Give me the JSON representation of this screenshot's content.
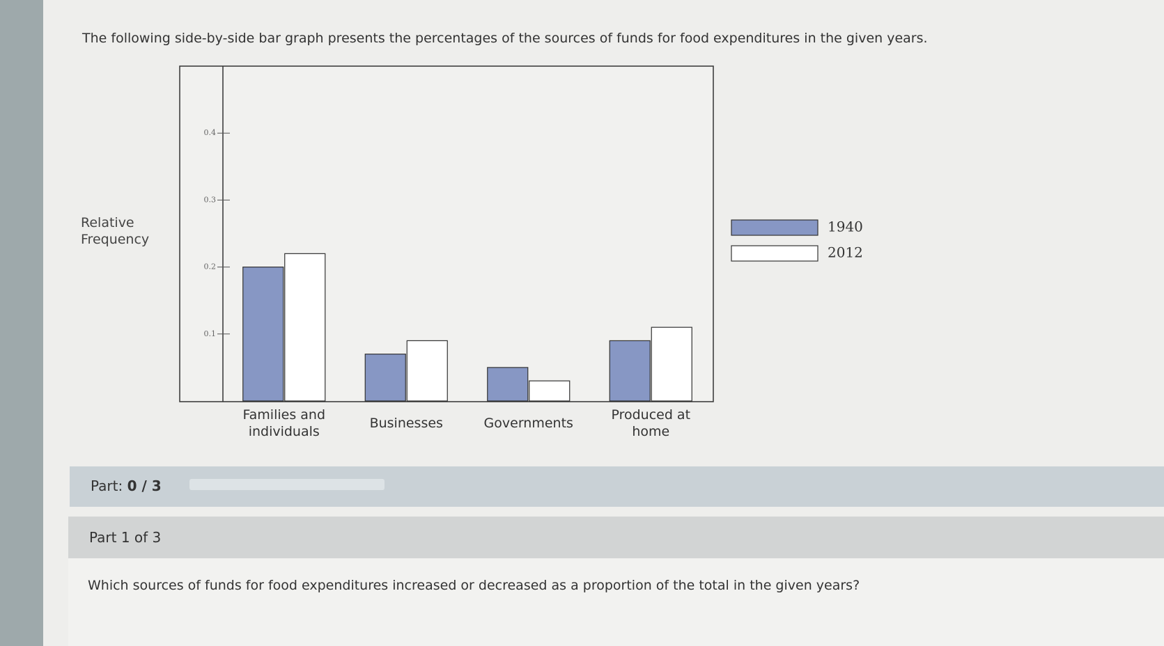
{
  "intro": "The following side-by-side bar graph presents the percentages of the sources of funds for food expenditures in the given years.",
  "chart_data": {
    "type": "bar",
    "y_label": "Relative Frequency",
    "categories": [
      "Families and individuals",
      "Businesses",
      "Governments",
      "Produced at home"
    ],
    "series": [
      {
        "name": "1940",
        "color": "#8797c4",
        "values": [
          0.2,
          0.07,
          0.05,
          0.09
        ]
      },
      {
        "name": "2012",
        "color": "#ffffff",
        "values": [
          0.22,
          0.09,
          0.03,
          0.11
        ]
      }
    ],
    "ylim": [
      0,
      0.5
    ],
    "yticks": [
      0.1,
      0.2,
      0.3,
      0.4
    ],
    "grid": false,
    "legend": "right"
  },
  "progress": {
    "label": "Part:",
    "value": "0 / 3"
  },
  "part_header": "Part 1 of 3",
  "question": "Which sources of funds for food expenditures increased or decreased as a proportion of the total in the given years?"
}
